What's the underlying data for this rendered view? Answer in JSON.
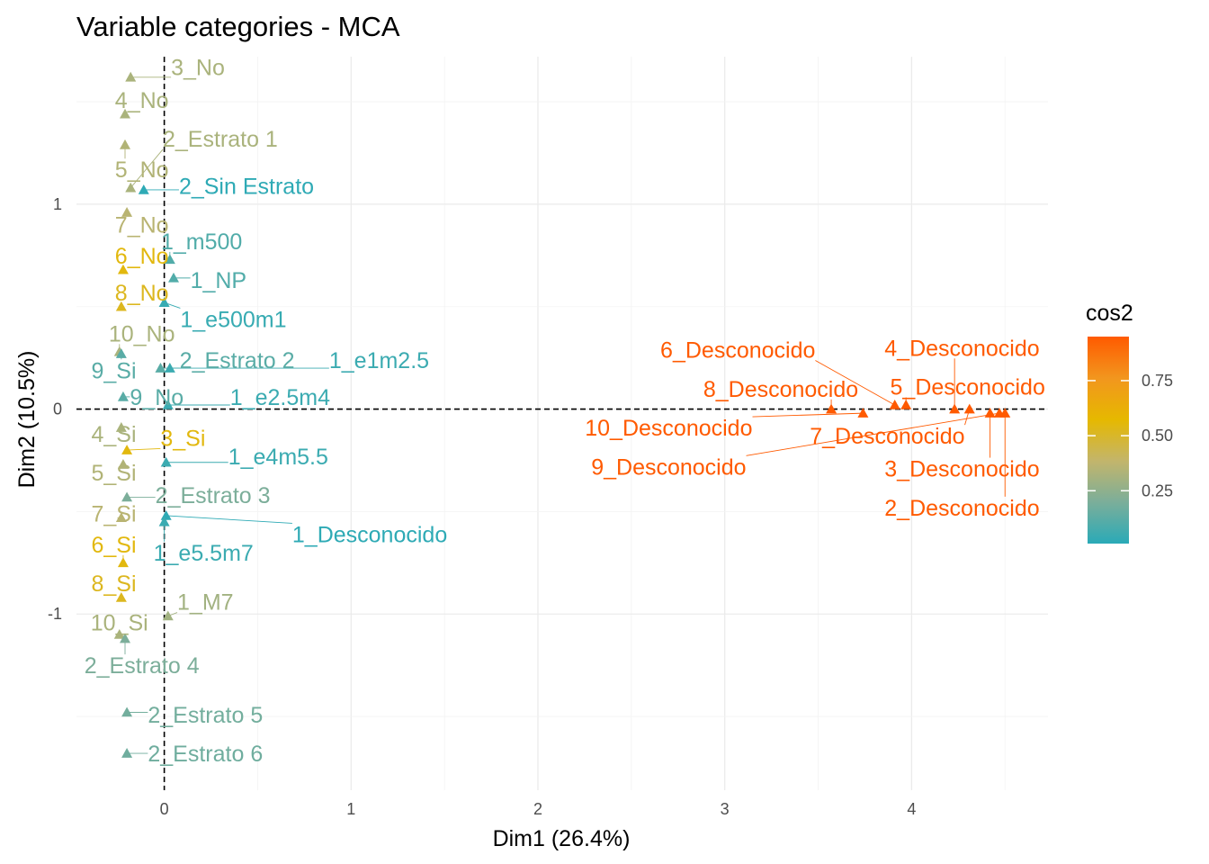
{
  "chart_data": {
    "type": "scatter",
    "title": "Variable categories - MCA",
    "xlabel": "Dim1 (26.4%)",
    "ylabel": "Dim2 (10.5%)",
    "xlim": [
      -0.47,
      4.73
    ],
    "ylim": [
      -1.86,
      1.72
    ],
    "x_ticks": [
      0,
      1,
      2,
      3,
      4
    ],
    "y_ticks": [
      -1,
      0,
      1
    ],
    "x_tick_labels": [
      "0",
      "1",
      "2",
      "3",
      "4"
    ],
    "y_tick_labels": [
      "-1",
      "0",
      "1"
    ],
    "grid": true,
    "zero_lines": true,
    "legend": {
      "title": "cos2",
      "position": "right",
      "range": [
        0.01,
        0.95
      ],
      "ticks": [
        0.25,
        0.5,
        0.75
      ],
      "tick_labels": [
        "0.25",
        "0.50",
        "0.75"
      ],
      "colors": [
        "#2AAAB7",
        "#7BAE9A",
        "#C3B56B",
        "#E6B800",
        "#F2961E",
        "#FF5A00"
      ]
    },
    "points": [
      {
        "label": "3_No",
        "x": -0.18,
        "y": 1.62,
        "lx": 0.18,
        "ly": 1.67,
        "cos2": 0.32
      },
      {
        "label": "4_No",
        "x": -0.21,
        "y": 1.44,
        "lx": -0.12,
        "ly": 1.51,
        "cos2": 0.32
      },
      {
        "label": "5_No",
        "x": -0.21,
        "y": 1.29,
        "lx": -0.12,
        "ly": 1.17,
        "cos2": 0.34
      },
      {
        "label": "2_Estrato 1",
        "x": -0.18,
        "y": 1.08,
        "lx": 0.3,
        "ly": 1.32,
        "cos2": 0.32
      },
      {
        "label": "2_Sin Estrato",
        "x": -0.11,
        "y": 1.07,
        "lx": 0.44,
        "ly": 1.09,
        "cos2": 0.02
      },
      {
        "label": "7_No",
        "x": -0.2,
        "y": 0.96,
        "lx": -0.12,
        "ly": 0.9,
        "cos2": 0.36
      },
      {
        "label": "1_m500",
        "x": 0.03,
        "y": 0.73,
        "lx": 0.2,
        "ly": 0.82,
        "cos2": 0.1
      },
      {
        "label": "6_No",
        "x": -0.22,
        "y": 0.68,
        "lx": -0.12,
        "ly": 0.75,
        "cos2": 0.55
      },
      {
        "label": "1_NP",
        "x": 0.05,
        "y": 0.64,
        "lx": 0.29,
        "ly": 0.63,
        "cos2": 0.1
      },
      {
        "label": "8_No",
        "x": -0.23,
        "y": 0.5,
        "lx": -0.12,
        "ly": 0.57,
        "cos2": 0.52
      },
      {
        "label": "1_e500m1",
        "x": 0.0,
        "y": 0.52,
        "lx": 0.37,
        "ly": 0.44,
        "cos2": 0.04
      },
      {
        "label": "10_No",
        "x": -0.24,
        "y": 0.28,
        "lx": -0.12,
        "ly": 0.37,
        "cos2": 0.32
      },
      {
        "label": "9_Si",
        "x": -0.23,
        "y": 0.27,
        "lx": -0.27,
        "ly": 0.19,
        "cos2": 0.12
      },
      {
        "label": "2_Estrato 2",
        "x": -0.02,
        "y": 0.2,
        "lx": 0.39,
        "ly": 0.24,
        "cos2": 0.12
      },
      {
        "label": "1_e1m2.5",
        "x": 0.03,
        "y": 0.2,
        "lx": 1.15,
        "ly": 0.24,
        "cos2": 0.05
      },
      {
        "label": "9_No",
        "x": -0.22,
        "y": 0.06,
        "lx": -0.04,
        "ly": 0.06,
        "cos2": 0.12
      },
      {
        "label": "1_e2.5m4",
        "x": 0.02,
        "y": 0.02,
        "lx": 0.62,
        "ly": 0.06,
        "cos2": 0.05
      },
      {
        "label": "4_Si",
        "x": -0.23,
        "y": -0.09,
        "lx": -0.27,
        "ly": -0.12,
        "cos2": 0.32
      },
      {
        "label": "3_Si",
        "x": -0.2,
        "y": -0.2,
        "lx": 0.1,
        "ly": -0.14,
        "cos2": 0.55
      },
      {
        "label": "5_Si",
        "x": -0.22,
        "y": -0.27,
        "lx": -0.27,
        "ly": -0.31,
        "cos2": 0.34
      },
      {
        "label": "1_e4m5.5",
        "x": 0.01,
        "y": -0.26,
        "lx": 0.61,
        "ly": -0.23,
        "cos2": 0.05
      },
      {
        "label": "2_Estrato 3",
        "x": -0.2,
        "y": -0.43,
        "lx": 0.26,
        "ly": -0.42,
        "cos2": 0.2
      },
      {
        "label": "7_Si",
        "x": -0.23,
        "y": -0.53,
        "lx": -0.27,
        "ly": -0.51,
        "cos2": 0.36
      },
      {
        "label": "1_Desconocido",
        "x": 0.01,
        "y": -0.52,
        "lx": 1.1,
        "ly": -0.61,
        "cos2": 0.02
      },
      {
        "label": "1_e5.5m7",
        "x": 0.0,
        "y": -0.55,
        "lx": 0.21,
        "ly": -0.7,
        "cos2": 0.05
      },
      {
        "label": "6_Si",
        "x": -0.22,
        "y": -0.75,
        "lx": -0.27,
        "ly": -0.66,
        "cos2": 0.55
      },
      {
        "label": "8_Si",
        "x": -0.23,
        "y": -0.92,
        "lx": -0.27,
        "ly": -0.85,
        "cos2": 0.52
      },
      {
        "label": "1_M7",
        "x": 0.02,
        "y": -1.01,
        "lx": 0.22,
        "ly": -0.94,
        "cos2": 0.3
      },
      {
        "label": "10_Si",
        "x": -0.24,
        "y": -1.1,
        "lx": -0.24,
        "ly": -1.04,
        "cos2": 0.32
      },
      {
        "label": "2_Estrato 4",
        "x": -0.21,
        "y": -1.12,
        "lx": -0.12,
        "ly": -1.25,
        "cos2": 0.2
      },
      {
        "label": "2_Estrato 5",
        "x": -0.2,
        "y": -1.48,
        "lx": 0.22,
        "ly": -1.49,
        "cos2": 0.18
      },
      {
        "label": "2_Estrato 6",
        "x": -0.2,
        "y": -1.68,
        "lx": 0.22,
        "ly": -1.68,
        "cos2": 0.17
      },
      {
        "label": "6_Desconocido",
        "x": 3.91,
        "y": 0.02,
        "lx": 3.07,
        "ly": 0.29,
        "cos2": 0.95
      },
      {
        "label": "4_Desconocido",
        "x": 4.23,
        "y": 0.0,
        "lx": 4.27,
        "ly": 0.3,
        "cos2": 0.95
      },
      {
        "label": "8_Desconocido",
        "x": 3.57,
        "y": 0.0,
        "lx": 3.3,
        "ly": 0.1,
        "cos2": 0.95
      },
      {
        "label": "5_Desconocido",
        "x": 3.97,
        "y": 0.02,
        "lx": 4.3,
        "ly": 0.11,
        "cos2": 0.95
      },
      {
        "label": "10_Desconocido",
        "x": 3.74,
        "y": -0.02,
        "lx": 2.7,
        "ly": -0.09,
        "cos2": 0.95
      },
      {
        "label": "7_Desconocido",
        "x": 4.31,
        "y": 0.0,
        "lx": 3.87,
        "ly": -0.13,
        "cos2": 0.95
      },
      {
        "label": "9_Desconocido",
        "x": 4.47,
        "y": -0.02,
        "lx": 2.7,
        "ly": -0.28,
        "cos2": 0.95
      },
      {
        "label": "3_Desconocido",
        "x": 4.42,
        "y": -0.02,
        "lx": 4.27,
        "ly": -0.29,
        "cos2": 0.95
      },
      {
        "label": "2_Desconocido",
        "x": 4.5,
        "y": -0.02,
        "lx": 4.27,
        "ly": -0.48,
        "cos2": 0.95
      }
    ]
  }
}
